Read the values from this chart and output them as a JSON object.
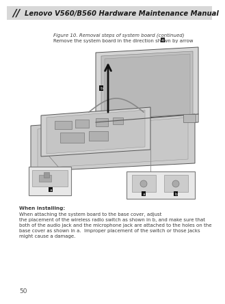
{
  "title_text": "Lenovo V560/B560 Hardware Maintenance Manual",
  "figure_caption": "Figure 10. Removal steps of system board (continued)",
  "instruction_text": "Remove the system board in the direction shown by arrow",
  "arrow_label": "4",
  "when_installing_bold": "When installing:",
  "line1": "When attaching the system board to the base cover, adjust",
  "line2": "the placement of the wireless radio switch as shown in b, and make sure that",
  "line3": "both of the audio jack and the microphone jack are attached to the holes on the",
  "line4": "base cover as shown in a.  Improper placement of the switch or those jacks",
  "line5": "might cause a damage.",
  "page_number": "50",
  "bg_color": "#ffffff",
  "text_color": "#3a3a3a",
  "header_bg": "#e0e0e0",
  "header_line_color": "#aaaaaa"
}
